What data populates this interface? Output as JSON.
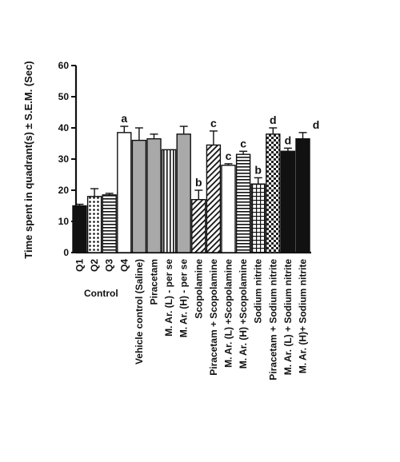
{
  "chart_data": {
    "type": "bar",
    "ylabel": "Time spent in quadrant(s) ± S.E.M. (Sec)",
    "ylim": [
      0,
      60
    ],
    "yticks": [
      0,
      10,
      20,
      30,
      40,
      50,
      60
    ],
    "group_label": "Control",
    "categories": [
      "Q1",
      "Q2",
      "Q3",
      "Q4",
      "Vehicle control (Saline)",
      "Piracetam",
      "M. Ar. (L) - per se",
      "M. Ar. (H) - per se",
      "Scopolamine",
      "Piracetam + Scopolamine",
      "M. Ar. (L) +Scopolamine",
      "M. Ar. (H) +Scopolamine",
      "Sodium nitrite",
      "Piracetam + Sodium nitrite",
      "M. Ar. (L) + Sodium nitrite",
      "M. Ar. (H)+ Sodium nitrite"
    ],
    "values": [
      15,
      18,
      18.5,
      38.5,
      36,
      36.5,
      33,
      38,
      17,
      34.5,
      28,
      31.5,
      22,
      38,
      32.5,
      36.5
    ],
    "errors": [
      0.5,
      2.5,
      0.5,
      2,
      4,
      1.5,
      0,
      2.5,
      3,
      4.5,
      0.5,
      1,
      2,
      2,
      1,
      2
    ],
    "significance": [
      "",
      "",
      "",
      "a",
      "",
      "",
      "",
      "",
      "b",
      "c",
      "c",
      "c",
      "b",
      "d",
      "d",
      "d"
    ],
    "fills": [
      "black",
      "dots",
      "hlines",
      "white",
      "gray",
      "gray",
      "vlines",
      "gray",
      "diag",
      "diag",
      "white",
      "hlines",
      "grid",
      "checker",
      "black",
      "black"
    ],
    "grid": false,
    "legend": "none"
  }
}
